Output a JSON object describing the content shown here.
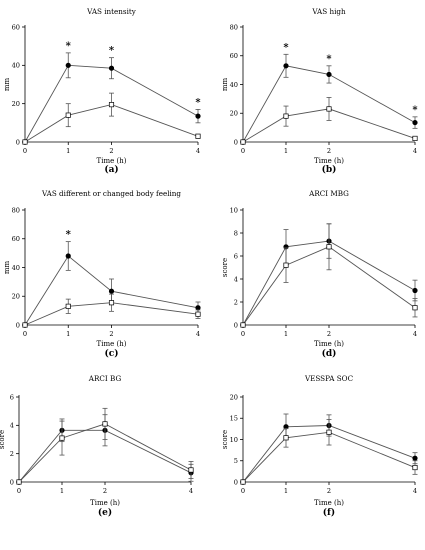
{
  "chart_data": [
    {
      "type": "line",
      "panel_label": "(a)",
      "title": "VAS intensity",
      "xlabel": "Time (h)",
      "ylabel": "mm",
      "ylim": [
        0,
        60
      ],
      "yticks": [
        "0",
        "20",
        "40",
        "60"
      ],
      "x": [
        0,
        1,
        2,
        4
      ],
      "xticks": [
        "0",
        "1",
        "2",
        "4"
      ],
      "series": [
        {
          "marker": "filled",
          "values": [
            0,
            40,
            38.5,
            13.5
          ],
          "errors": [
            0,
            6.5,
            5.5,
            3.5
          ]
        },
        {
          "marker": "open",
          "values": [
            0,
            14,
            19.5,
            3
          ],
          "errors": [
            0,
            6,
            6,
            1
          ]
        }
      ],
      "significance": [
        {
          "x": 1,
          "label": "*"
        },
        {
          "x": 2,
          "label": "*"
        },
        {
          "x": 4,
          "label": "*"
        }
      ]
    },
    {
      "type": "line",
      "panel_label": "(b)",
      "title": "VAS high",
      "xlabel": "Time (h)",
      "ylabel": "mm",
      "ylim": [
        0,
        80
      ],
      "yticks": [
        "0",
        "20",
        "40",
        "60",
        "80"
      ],
      "x": [
        0,
        1,
        2,
        4
      ],
      "xticks": [
        "0",
        "1",
        "2",
        "4"
      ],
      "series": [
        {
          "marker": "filled",
          "values": [
            0,
            53,
            47,
            13.5
          ],
          "errors": [
            0,
            8,
            6,
            4
          ]
        },
        {
          "marker": "open",
          "values": [
            0,
            18,
            23,
            2.5
          ],
          "errors": [
            0,
            7,
            8,
            1
          ]
        }
      ],
      "significance": [
        {
          "x": 1,
          "label": "*"
        },
        {
          "x": 2,
          "label": "*"
        },
        {
          "x": 4,
          "label": "*"
        }
      ]
    },
    {
      "type": "line",
      "panel_label": "(c)",
      "title": "VAS different or changed body feeling",
      "xlabel": "Time (h)",
      "ylabel": "mm",
      "ylim": [
        0,
        80
      ],
      "yticks": [
        "0",
        "20",
        "40",
        "60",
        "80"
      ],
      "x": [
        0,
        1,
        2,
        4
      ],
      "xticks": [
        "0",
        "1",
        "2",
        "4"
      ],
      "series": [
        {
          "marker": "filled",
          "values": [
            0,
            48,
            23.5,
            12
          ],
          "errors": [
            0,
            10,
            8.5,
            4
          ]
        },
        {
          "marker": "open",
          "values": [
            0,
            13,
            15.5,
            7.5
          ],
          "errors": [
            0,
            5,
            6,
            3
          ]
        }
      ],
      "significance": [
        {
          "x": 1,
          "label": "*"
        }
      ]
    },
    {
      "type": "line",
      "panel_label": "(d)",
      "title": "ARCI MBG",
      "xlabel": "Time (h)",
      "ylabel": "score",
      "ylim": [
        0,
        10
      ],
      "yticks": [
        "0",
        "2",
        "4",
        "6",
        "8",
        "10"
      ],
      "x": [
        0,
        1,
        2,
        4
      ],
      "xticks": [
        "0",
        "1",
        "2",
        "4"
      ],
      "series": [
        {
          "marker": "filled",
          "values": [
            0,
            6.8,
            7.3,
            3
          ],
          "errors": [
            0,
            1.5,
            1.5,
            0.9
          ]
        },
        {
          "marker": "open",
          "values": [
            0,
            5.2,
            6.8,
            1.5
          ],
          "errors": [
            0,
            1.5,
            2,
            0.8
          ]
        }
      ],
      "significance": []
    },
    {
      "type": "line",
      "panel_label": "(e)",
      "title": "ARCI BG",
      "xlabel": "Time (h)",
      "ylabel": "score",
      "ylim": [
        0,
        6
      ],
      "yticks": [
        "0",
        "2",
        "4",
        "6"
      ],
      "x": [
        0,
        1,
        2,
        4
      ],
      "xticks": [
        "0",
        "1",
        "2",
        "4"
      ],
      "series": [
        {
          "marker": "filled",
          "values": [
            0,
            3.65,
            3.65,
            0.65
          ],
          "errors": [
            0,
            0.8,
            1.1,
            0.6
          ]
        },
        {
          "marker": "open",
          "values": [
            0,
            3.1,
            4.1,
            0.85
          ],
          "errors": [
            0,
            1.2,
            1.1,
            0.6
          ]
        }
      ],
      "significance": []
    },
    {
      "type": "line",
      "panel_label": "(f)",
      "title": "VESSPA SOC",
      "xlabel": "Time (h)",
      "ylabel": "score",
      "ylim": [
        0,
        20
      ],
      "yticks": [
        "0",
        "5",
        "10",
        "15",
        "20"
      ],
      "x": [
        0,
        1,
        2,
        4
      ],
      "xticks": [
        "0",
        "1",
        "2",
        "4"
      ],
      "series": [
        {
          "marker": "filled",
          "values": [
            0,
            13,
            13.3,
            5.6
          ],
          "errors": [
            0,
            3,
            2.5,
            1.3
          ]
        },
        {
          "marker": "open",
          "values": [
            0,
            10.4,
            11.7,
            3.4
          ],
          "errors": [
            0,
            2.2,
            3,
            1.6
          ]
        }
      ],
      "significance": []
    }
  ]
}
